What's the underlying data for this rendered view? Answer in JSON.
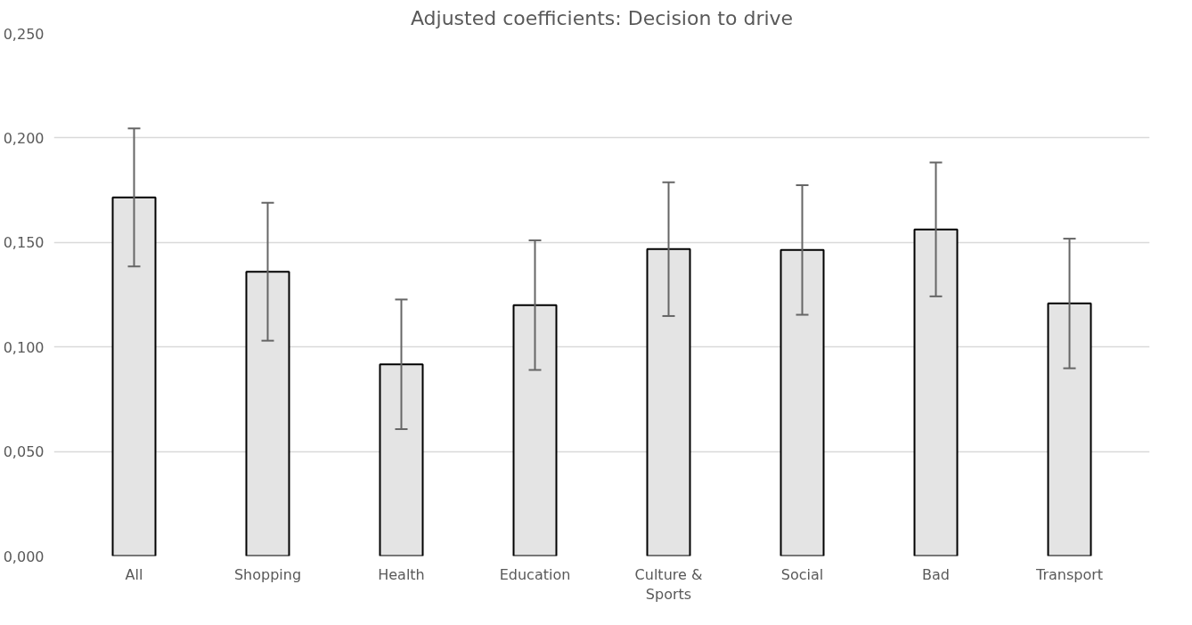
{
  "chart_data": {
    "type": "bar",
    "title": "Adjusted coefficients: Decision to drive",
    "categories": [
      "All",
      "Shopping",
      "Health",
      "Education",
      "Culture & Sports",
      "Social",
      "Bad",
      "Transport"
    ],
    "values": [
      0.1715,
      0.136,
      0.0917,
      0.12,
      0.1468,
      0.1464,
      0.1562,
      0.1208
    ],
    "errors": [
      0.033,
      0.033,
      0.031,
      0.031,
      0.032,
      0.031,
      0.032,
      0.031
    ],
    "color": "#e4e4e4",
    "ylim": [
      0,
      0.25
    ],
    "yticks": [
      {
        "value": 0,
        "label": "0,000"
      },
      {
        "value": 0.05,
        "label": "0,050"
      },
      {
        "value": 0.1,
        "label": "0,100"
      },
      {
        "value": 0.15,
        "label": "0,150"
      },
      {
        "value": 0.2,
        "label": "0,200"
      },
      {
        "value": 0.25,
        "label": "0,250"
      }
    ],
    "grid": "y"
  }
}
